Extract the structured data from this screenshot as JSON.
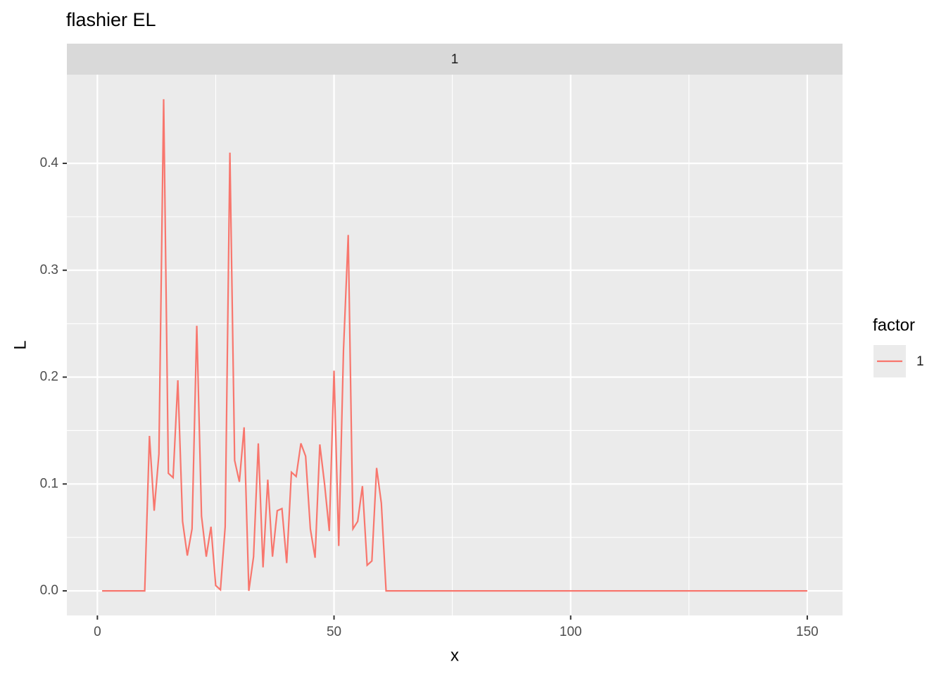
{
  "chart_data": {
    "type": "line",
    "title": "flashier EL",
    "facet_label": "1",
    "x_label": "x",
    "y_label": "L",
    "legend_title": "factor",
    "x": [
      1,
      2,
      3,
      4,
      5,
      6,
      7,
      8,
      9,
      10,
      11,
      12,
      13,
      14,
      15,
      16,
      17,
      18,
      19,
      20,
      21,
      22,
      23,
      24,
      25,
      26,
      27,
      28,
      29,
      30,
      31,
      32,
      33,
      34,
      35,
      36,
      37,
      38,
      39,
      40,
      41,
      42,
      43,
      44,
      45,
      46,
      47,
      48,
      49,
      50,
      51,
      52,
      53,
      54,
      55,
      56,
      57,
      58,
      59,
      60,
      61,
      62,
      63,
      64,
      65,
      66,
      67,
      68,
      69,
      70,
      71,
      72,
      73,
      74,
      75,
      76,
      77,
      78,
      79,
      80,
      81,
      82,
      83,
      84,
      85,
      86,
      87,
      88,
      89,
      90,
      91,
      92,
      93,
      94,
      95,
      96,
      97,
      98,
      99,
      100,
      101,
      102,
      103,
      104,
      105,
      106,
      107,
      108,
      109,
      110,
      111,
      112,
      113,
      114,
      115,
      116,
      117,
      118,
      119,
      120,
      121,
      122,
      123,
      124,
      125,
      126,
      127,
      128,
      129,
      130,
      131,
      132,
      133,
      134,
      135,
      136,
      137,
      138,
      139,
      140,
      141,
      142,
      143,
      144,
      145,
      146,
      147,
      148,
      149,
      150
    ],
    "series": [
      {
        "name": "1",
        "color": "#F8766D",
        "values": [
          0,
          0,
          0,
          0,
          0,
          0,
          0,
          0,
          0,
          0,
          0.145,
          0.075,
          0.128,
          0.46,
          0.11,
          0.106,
          0.197,
          0.065,
          0.033,
          0.058,
          0.248,
          0.07,
          0.032,
          0.06,
          0.005,
          0.001,
          0.06,
          0.41,
          0.122,
          0.102,
          0.153,
          0,
          0.032,
          0.138,
          0.022,
          0.104,
          0.032,
          0.075,
          0.077,
          0.026,
          0.111,
          0.107,
          0.138,
          0.126,
          0.058,
          0.031,
          0.137,
          0.1,
          0.056,
          0.206,
          0.042,
          0.225,
          0.333,
          0.058,
          0.065,
          0.098,
          0.024,
          0.028,
          0.115,
          0.082,
          0,
          0,
          0,
          0,
          0,
          0,
          0,
          0,
          0,
          0,
          0,
          0,
          0,
          0,
          0,
          0,
          0,
          0,
          0,
          0,
          0,
          0,
          0,
          0,
          0,
          0,
          0,
          0,
          0,
          0,
          0,
          0,
          0,
          0,
          0,
          0,
          0,
          0,
          0,
          0,
          0,
          0,
          0,
          0,
          0,
          0,
          0,
          0,
          0,
          0,
          0,
          0,
          0,
          0,
          0,
          0,
          0,
          0,
          0,
          0,
          0,
          0,
          0,
          0,
          0,
          0,
          0,
          0,
          0,
          0,
          0,
          0,
          0,
          0,
          0,
          0,
          0,
          0,
          0,
          0,
          0,
          0,
          0,
          0,
          0,
          0,
          0,
          0,
          0,
          0
        ]
      }
    ],
    "xlim": [
      -6.45,
      157.45
    ],
    "xticks": [
      0,
      50,
      100,
      150
    ],
    "ylim": [
      -0.023,
      0.483
    ],
    "yticks": [
      {
        "value": 0,
        "label": "0.0"
      },
      0.1,
      0.2,
      0.3,
      0.4
    ],
    "grid": true,
    "legend_position": "right"
  }
}
